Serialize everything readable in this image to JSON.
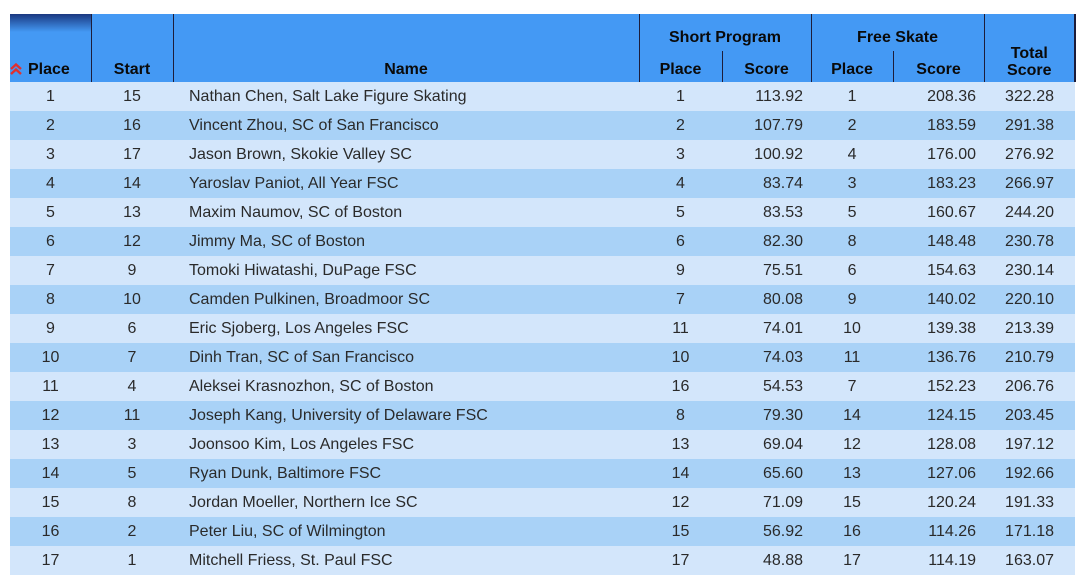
{
  "header": {
    "place": "Place",
    "start": "Start",
    "name": "Name",
    "short_program": "Short Program",
    "free_skate": "Free Skate",
    "total_line1": "Total",
    "total_line2": "Score",
    "sp_place": "Place",
    "sp_score": "Score",
    "fs_place": "Place",
    "fs_score": "Score",
    "sort_icon": "double-chevron-up-icon",
    "sort_icon_color": "#e03030"
  },
  "colors": {
    "header_bg": "#4499f4",
    "row_light": "#d3e6fb",
    "row_dark": "#a9d2f7"
  },
  "rows": [
    {
      "place": "1",
      "start": "15",
      "name": "Nathan Chen, Salt Lake Figure Skating",
      "sp_place": "1",
      "sp_score": "113.92",
      "fs_place": "1",
      "fs_score": "208.36",
      "total": "322.28"
    },
    {
      "place": "2",
      "start": "16",
      "name": "Vincent Zhou, SC of San Francisco",
      "sp_place": "2",
      "sp_score": "107.79",
      "fs_place": "2",
      "fs_score": "183.59",
      "total": "291.38"
    },
    {
      "place": "3",
      "start": "17",
      "name": "Jason Brown, Skokie Valley SC",
      "sp_place": "3",
      "sp_score": "100.92",
      "fs_place": "4",
      "fs_score": "176.00",
      "total": "276.92"
    },
    {
      "place": "4",
      "start": "14",
      "name": "Yaroslav Paniot, All Year FSC",
      "sp_place": "4",
      "sp_score": "83.74",
      "fs_place": "3",
      "fs_score": "183.23",
      "total": "266.97"
    },
    {
      "place": "5",
      "start": "13",
      "name": "Maxim Naumov, SC of Boston",
      "sp_place": "5",
      "sp_score": "83.53",
      "fs_place": "5",
      "fs_score": "160.67",
      "total": "244.20"
    },
    {
      "place": "6",
      "start": "12",
      "name": "Jimmy Ma, SC of Boston",
      "sp_place": "6",
      "sp_score": "82.30",
      "fs_place": "8",
      "fs_score": "148.48",
      "total": "230.78"
    },
    {
      "place": "7",
      "start": "9",
      "name": "Tomoki Hiwatashi, DuPage FSC",
      "sp_place": "9",
      "sp_score": "75.51",
      "fs_place": "6",
      "fs_score": "154.63",
      "total": "230.14"
    },
    {
      "place": "8",
      "start": "10",
      "name": "Camden Pulkinen, Broadmoor SC",
      "sp_place": "7",
      "sp_score": "80.08",
      "fs_place": "9",
      "fs_score": "140.02",
      "total": "220.10"
    },
    {
      "place": "9",
      "start": "6",
      "name": "Eric Sjoberg, Los Angeles FSC",
      "sp_place": "11",
      "sp_score": "74.01",
      "fs_place": "10",
      "fs_score": "139.38",
      "total": "213.39"
    },
    {
      "place": "10",
      "start": "7",
      "name": "Dinh Tran, SC of San Francisco",
      "sp_place": "10",
      "sp_score": "74.03",
      "fs_place": "11",
      "fs_score": "136.76",
      "total": "210.79"
    },
    {
      "place": "11",
      "start": "4",
      "name": "Aleksei Krasnozhon, SC of Boston",
      "sp_place": "16",
      "sp_score": "54.53",
      "fs_place": "7",
      "fs_score": "152.23",
      "total": "206.76"
    },
    {
      "place": "12",
      "start": "11",
      "name": "Joseph Kang, University of Delaware FSC",
      "sp_place": "8",
      "sp_score": "79.30",
      "fs_place": "14",
      "fs_score": "124.15",
      "total": "203.45"
    },
    {
      "place": "13",
      "start": "3",
      "name": "Joonsoo Kim, Los Angeles FSC",
      "sp_place": "13",
      "sp_score": "69.04",
      "fs_place": "12",
      "fs_score": "128.08",
      "total": "197.12"
    },
    {
      "place": "14",
      "start": "5",
      "name": "Ryan Dunk, Baltimore FSC",
      "sp_place": "14",
      "sp_score": "65.60",
      "fs_place": "13",
      "fs_score": "127.06",
      "total": "192.66"
    },
    {
      "place": "15",
      "start": "8",
      "name": "Jordan Moeller, Northern Ice SC",
      "sp_place": "12",
      "sp_score": "71.09",
      "fs_place": "15",
      "fs_score": "120.24",
      "total": "191.33"
    },
    {
      "place": "16",
      "start": "2",
      "name": "Peter Liu, SC of Wilmington",
      "sp_place": "15",
      "sp_score": "56.92",
      "fs_place": "16",
      "fs_score": "114.26",
      "total": "171.18"
    },
    {
      "place": "17",
      "start": "1",
      "name": "Mitchell Friess, St. Paul FSC",
      "sp_place": "17",
      "sp_score": "48.88",
      "fs_place": "17",
      "fs_score": "114.19",
      "total": "163.07"
    }
  ]
}
